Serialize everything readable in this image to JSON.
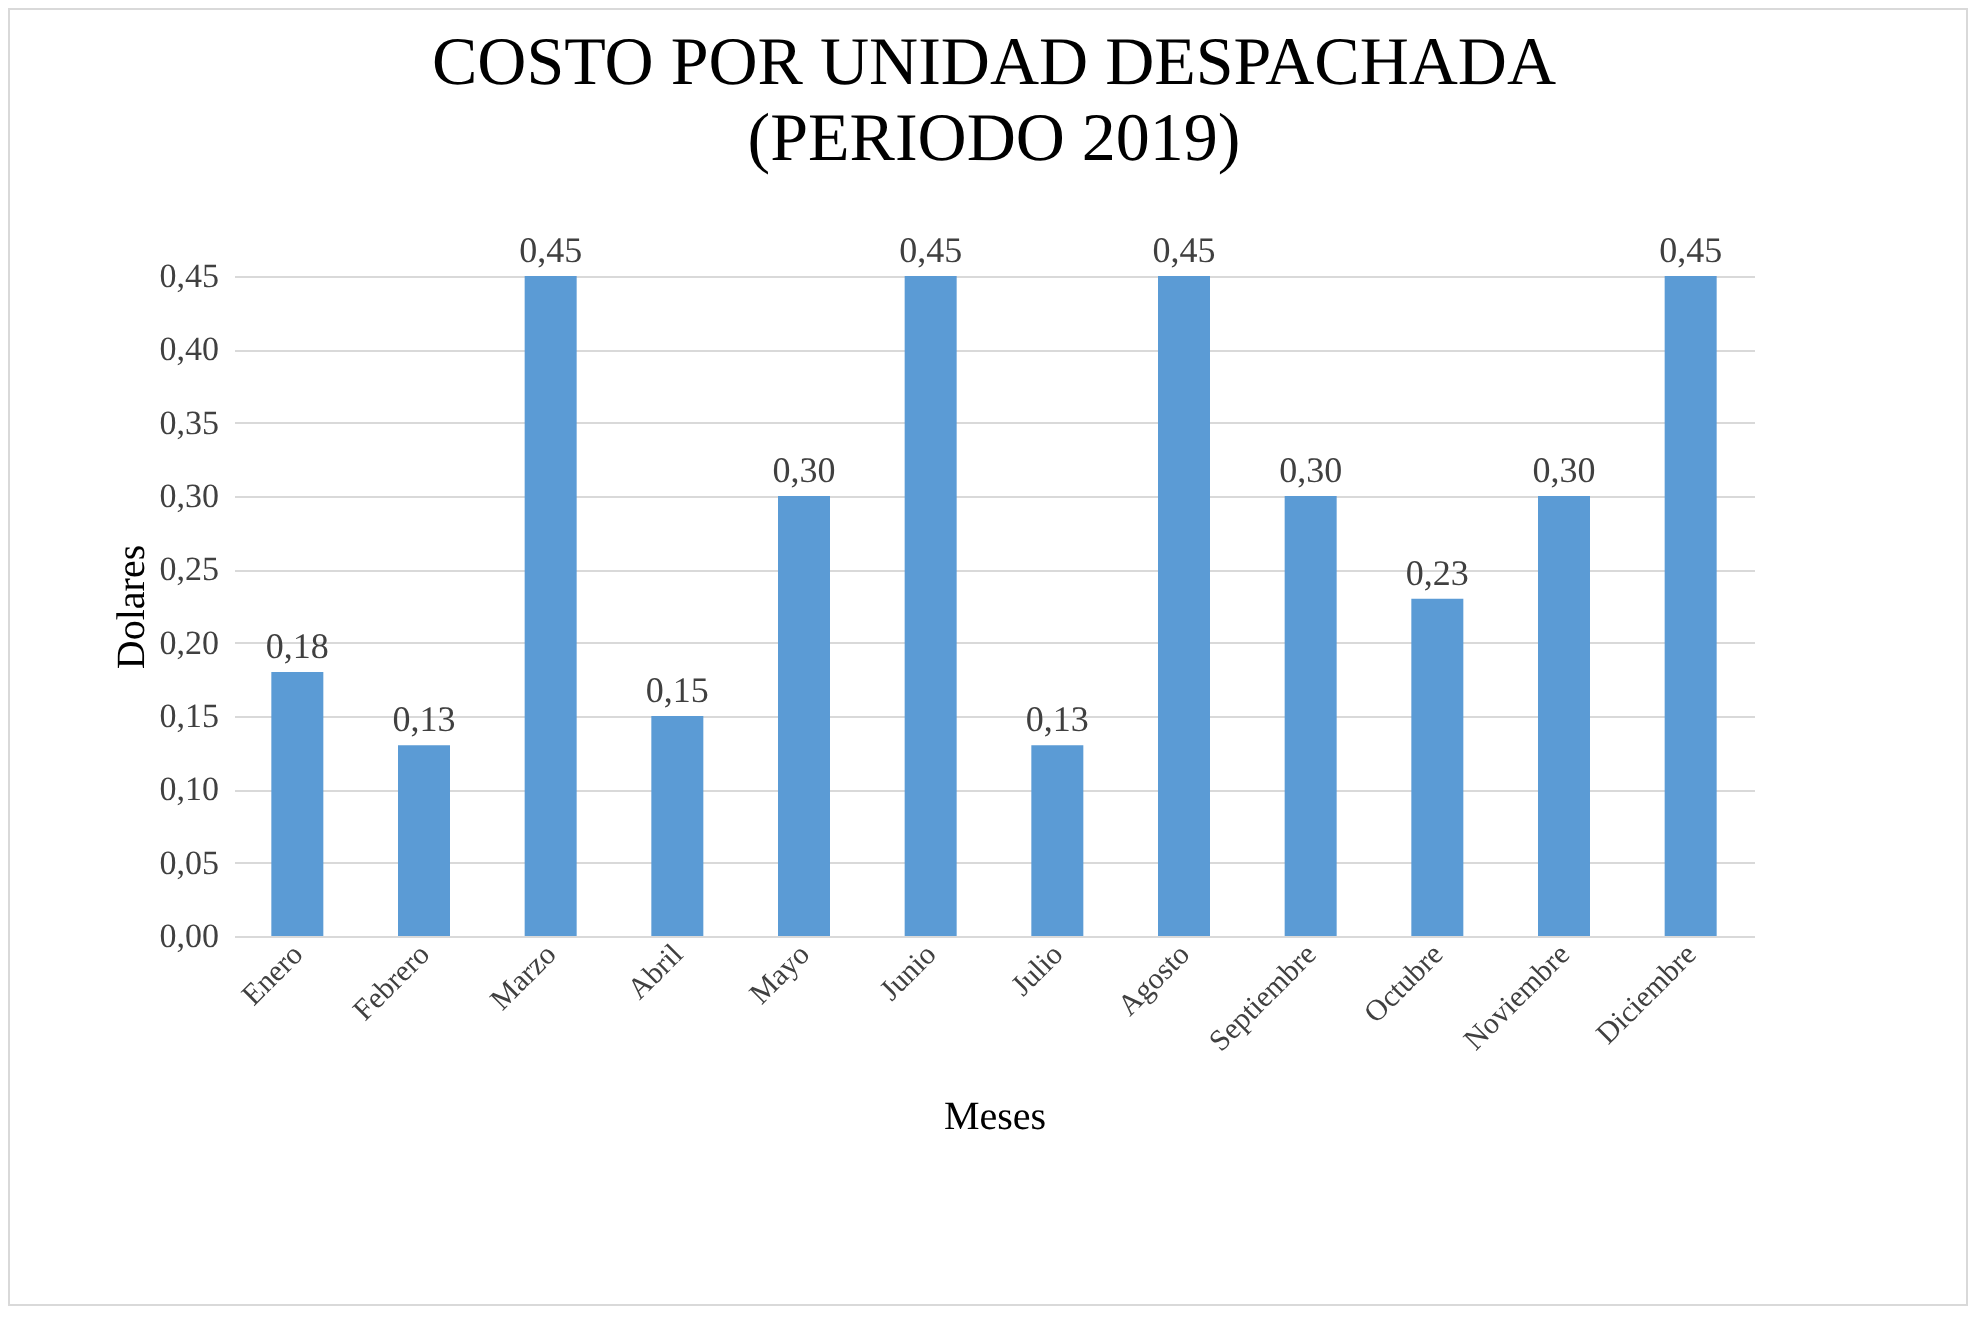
{
  "chart_data": {
    "type": "bar",
    "title": "COSTO POR UNIDAD DESPACHADA\n(PERIODO 2019)",
    "xlabel": "Meses",
    "ylabel": "Dolares",
    "categories": [
      "Enero",
      "Febrero",
      "Marzo",
      "Abril",
      "Mayo",
      "Junio",
      "Julio",
      "Agosto",
      "Septiembre",
      "Octubre",
      "Noviembre",
      "Diciembre"
    ],
    "values": [
      0.18,
      0.13,
      0.45,
      0.15,
      0.3,
      0.45,
      0.13,
      0.45,
      0.3,
      0.23,
      0.3,
      0.45
    ],
    "value_labels": [
      "0,18",
      "0,13",
      "0,45",
      "0,15",
      "0,30",
      "0,45",
      "0,13",
      "0,45",
      "0,30",
      "0,23",
      "0,30",
      "0,45"
    ],
    "color": "#5b9bd5",
    "ylim": [
      0,
      0.45
    ],
    "yticks": [
      {
        "value": 0,
        "label": "0,00"
      },
      {
        "value": 0.05,
        "label": "0,05"
      },
      {
        "value": 0.1,
        "label": "0,10"
      },
      {
        "value": 0.15,
        "label": "0,15"
      },
      {
        "value": 0.2,
        "label": "0,20"
      },
      {
        "value": 0.25,
        "label": "0,25"
      },
      {
        "value": 0.3,
        "label": "0,30"
      },
      {
        "value": 0.35,
        "label": "0,35"
      },
      {
        "value": 0.4,
        "label": "0,40"
      },
      {
        "value": 0.45,
        "label": "0,45"
      }
    ],
    "grid": "y"
  }
}
